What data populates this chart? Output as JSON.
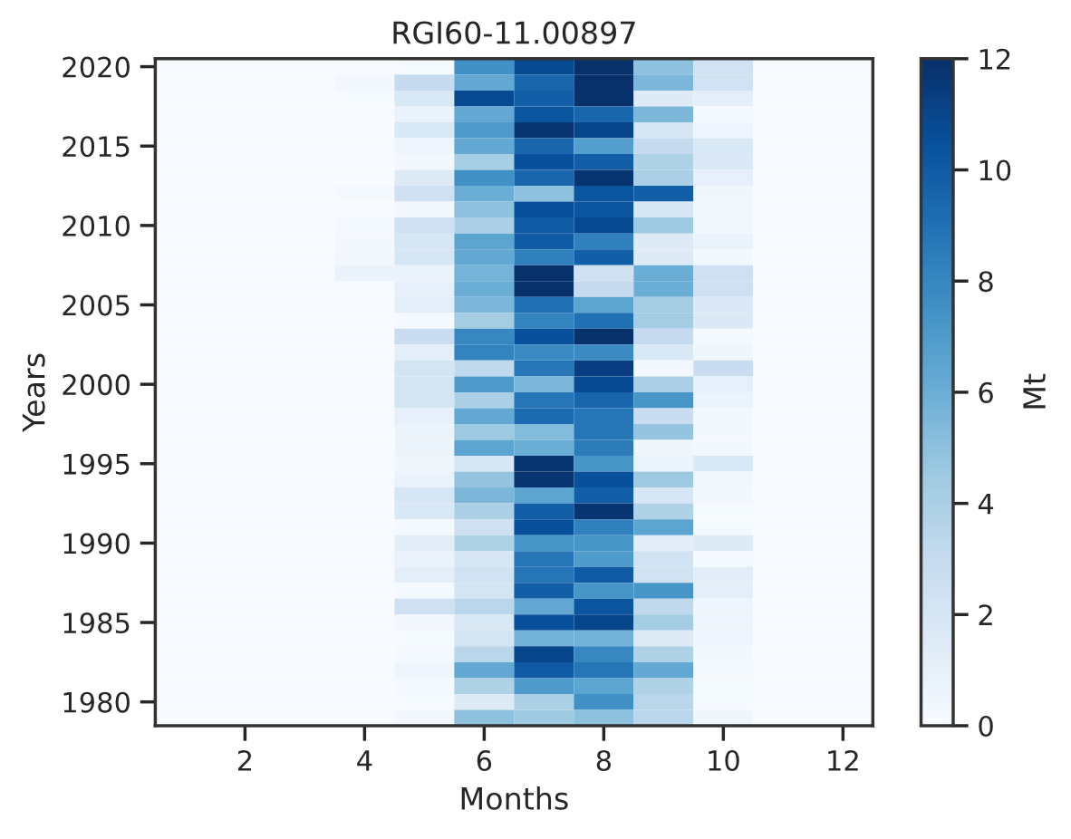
{
  "chart_data": {
    "type": "heatmap",
    "title": "RGI60-11.00897",
    "xlabel": "Months",
    "ylabel": "Years",
    "clabel": "Mt",
    "categories": [
      null,
      "2",
      null,
      "4",
      null,
      "6",
      null,
      "8",
      null,
      "10",
      null,
      "12"
    ],
    "y_categories": [
      "2020",
      null,
      null,
      null,
      null,
      "2015",
      null,
      null,
      null,
      null,
      "2010",
      null,
      null,
      null,
      null,
      "2005",
      null,
      null,
      null,
      null,
      "2000",
      null,
      null,
      null,
      null,
      "1995",
      null,
      null,
      null,
      null,
      "1990",
      null,
      null,
      null,
      null,
      "1985",
      null,
      null,
      null,
      null,
      "1980",
      null
    ],
    "clim": [
      0,
      12
    ],
    "cticks": [
      0,
      2,
      4,
      6,
      8,
      10,
      12
    ],
    "cells": [
      [
        0,
        0,
        0,
        0,
        0.1,
        7.5,
        10.8,
        12,
        5,
        2.3,
        0,
        0
      ],
      [
        0,
        0,
        0,
        0.3,
        3,
        6.3,
        9.5,
        12,
        5.5,
        2.3,
        0,
        0
      ],
      [
        0,
        0,
        0,
        0.1,
        1.8,
        10.8,
        9.8,
        12,
        1.5,
        1.2,
        0,
        0
      ],
      [
        0,
        0,
        0,
        0,
        0.8,
        6.3,
        10.3,
        9.5,
        5.5,
        0.2,
        0,
        0
      ],
      [
        0,
        0,
        0,
        0,
        1.8,
        7,
        11.8,
        11,
        2,
        0.6,
        0,
        0
      ],
      [
        0,
        0,
        0,
        0,
        0.6,
        6.3,
        9.5,
        6.8,
        3,
        1.8,
        0,
        0
      ],
      [
        0,
        0,
        0,
        0,
        0.3,
        4.2,
        10.5,
        9.8,
        3.8,
        1.7,
        0,
        0
      ],
      [
        0,
        0,
        0,
        0,
        1.5,
        7.5,
        9.5,
        11.8,
        4,
        1,
        0,
        0
      ],
      [
        0,
        0,
        0,
        0.2,
        2.5,
        6,
        5,
        10.3,
        9.8,
        0.5,
        0,
        0
      ],
      [
        0,
        0,
        0,
        0,
        0.4,
        5,
        10.5,
        10.3,
        2,
        0.4,
        0,
        0
      ],
      [
        0,
        0,
        0,
        0.2,
        2.5,
        4,
        10,
        10.8,
        4.5,
        0.4,
        0,
        0
      ],
      [
        0,
        0,
        0,
        0.3,
        2,
        6.5,
        10,
        8.3,
        1.5,
        0.8,
        0,
        0
      ],
      [
        0,
        0,
        0,
        0.4,
        2,
        6.3,
        8.3,
        9.8,
        1.5,
        0.3,
        0,
        0
      ],
      [
        0,
        0,
        0,
        0.8,
        0.8,
        5.7,
        12,
        2.5,
        6,
        2.5,
        0,
        0
      ],
      [
        0,
        0,
        0,
        0,
        1,
        6,
        12,
        3,
        6,
        2.5,
        0,
        0
      ],
      [
        0,
        0,
        0,
        0,
        1.2,
        5.5,
        9,
        6.5,
        4.3,
        1.7,
        0,
        0
      ],
      [
        0,
        0,
        0,
        0,
        0.2,
        4.3,
        8.2,
        9,
        4.3,
        1.7,
        0,
        0
      ],
      [
        0,
        0,
        0,
        0,
        2.8,
        8,
        10.5,
        12,
        3,
        0.2,
        0,
        0
      ],
      [
        0,
        0,
        0,
        0,
        1.2,
        8.2,
        7.8,
        7.8,
        1.8,
        0.5,
        0,
        0
      ],
      [
        0,
        0,
        0,
        0,
        2.2,
        3.2,
        8.7,
        11.3,
        0.3,
        2.8,
        0,
        0
      ],
      [
        0,
        0,
        0,
        0,
        2.2,
        7,
        5.5,
        10.8,
        4,
        1,
        0,
        0
      ],
      [
        0,
        0,
        0,
        0,
        2.2,
        4,
        8.8,
        9.5,
        7.3,
        0.7,
        0,
        0
      ],
      [
        0,
        0,
        0,
        0,
        1,
        6.3,
        9.3,
        8.8,
        2.8,
        0.3,
        0,
        0
      ],
      [
        0,
        0,
        0,
        0,
        0.7,
        4.5,
        5.3,
        8.8,
        4.8,
        0.3,
        0,
        0
      ],
      [
        0,
        0,
        0,
        0,
        0.7,
        6.5,
        6,
        8.5,
        0.5,
        0.3,
        0,
        0
      ],
      [
        0,
        0,
        0,
        0,
        0.5,
        2,
        11.8,
        7.3,
        0.7,
        1.8,
        0,
        0
      ],
      [
        0,
        0,
        0,
        0,
        0.8,
        4.8,
        11.8,
        10.5,
        4.5,
        0.4,
        0,
        0
      ],
      [
        0,
        0,
        0,
        0,
        2,
        5.5,
        6.5,
        9.8,
        2,
        0.3,
        0,
        0
      ],
      [
        0,
        0,
        0,
        0,
        1.8,
        4,
        9.8,
        11.8,
        3.8,
        0.1,
        0,
        0
      ],
      [
        0,
        0,
        0,
        0,
        0.2,
        2.5,
        10.5,
        8.3,
        6.5,
        0.1,
        0,
        0
      ],
      [
        0,
        0,
        0,
        0,
        1.3,
        3.8,
        7.3,
        7.3,
        1.3,
        1.5,
        0,
        0
      ],
      [
        0,
        0,
        0,
        0,
        0.8,
        2,
        8.8,
        7,
        2.3,
        0.2,
        0,
        0
      ],
      [
        0,
        0,
        0,
        0,
        1.2,
        2.3,
        8.8,
        10,
        2.3,
        1.3,
        0,
        0
      ],
      [
        0,
        0,
        0,
        0,
        0.2,
        2.2,
        9.8,
        7.3,
        7.3,
        1.2,
        0,
        0
      ],
      [
        0,
        0,
        0,
        0,
        2.5,
        3.5,
        6.3,
        10.3,
        3.2,
        0.6,
        0,
        0
      ],
      [
        0,
        0,
        0,
        0,
        0.4,
        1.8,
        10.5,
        11,
        4.3,
        0.6,
        0,
        0
      ],
      [
        0,
        0,
        0,
        0,
        0.1,
        2.2,
        5.8,
        5.8,
        1.5,
        0.6,
        0,
        0
      ],
      [
        0,
        0,
        0,
        0,
        0.2,
        3.5,
        11,
        8,
        3.8,
        0.3,
        0,
        0
      ],
      [
        0,
        0,
        0,
        0,
        0.6,
        6.3,
        10,
        8.8,
        6.3,
        0.2,
        0,
        0
      ],
      [
        0,
        0,
        0,
        0,
        0.2,
        3.8,
        7,
        6.5,
        3.8,
        0.1,
        0,
        0
      ],
      [
        0,
        0,
        0,
        0,
        0.1,
        1.5,
        4,
        7.5,
        3.5,
        0.1,
        0,
        0
      ],
      [
        0,
        0,
        0,
        0,
        0.4,
        5,
        4.5,
        5,
        3.5,
        0.5,
        0,
        0
      ]
    ]
  }
}
